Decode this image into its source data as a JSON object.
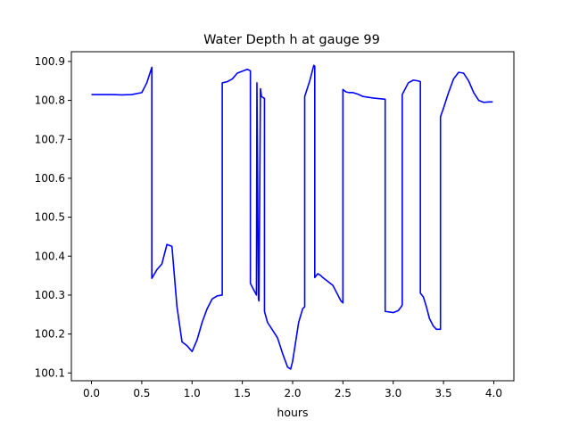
{
  "chart_data": {
    "type": "line",
    "title": "Water Depth h at gauge 99",
    "xlabel": "hours",
    "ylabel": "",
    "xlim": [
      -0.2,
      4.2
    ],
    "ylim": [
      100.08,
      100.925
    ],
    "xticks": [
      0.0,
      0.5,
      1.0,
      1.5,
      2.0,
      2.5,
      3.0,
      3.5,
      4.0
    ],
    "xtick_labels": [
      "0.0",
      "0.5",
      "1.0",
      "1.5",
      "2.0",
      "2.5",
      "3.0",
      "3.5",
      "4.0"
    ],
    "yticks": [
      100.1,
      100.2,
      100.3,
      100.4,
      100.5,
      100.6,
      100.7,
      100.8,
      100.9
    ],
    "ytick_labels": [
      "100.1",
      "100.2",
      "100.3",
      "100.4",
      "100.5",
      "100.6",
      "100.7",
      "100.8",
      "100.9"
    ],
    "grid": false,
    "legend": "none",
    "series_color": "#0000ff",
    "series": [
      {
        "x": [
          0.0,
          0.1,
          0.2,
          0.3,
          0.4,
          0.5,
          0.55,
          0.6,
          0.6,
          0.65,
          0.7,
          0.75,
          0.8,
          0.85,
          0.9,
          0.95,
          1.0,
          1.05,
          1.1,
          1.15,
          1.2,
          1.25,
          1.3,
          1.3,
          1.35,
          1.4,
          1.45,
          1.5,
          1.55,
          1.58,
          1.58,
          1.62,
          1.64,
          1.645,
          1.66,
          1.665,
          1.68,
          1.69,
          1.72,
          1.72,
          1.75,
          1.8,
          1.85,
          1.9,
          1.95,
          1.98,
          2.0,
          2.03,
          2.06,
          2.1,
          2.12,
          2.12,
          2.17,
          2.21,
          2.22,
          2.22,
          2.25,
          2.28,
          2.3,
          2.35,
          2.4,
          2.45,
          2.48,
          2.5,
          2.5,
          2.53,
          2.56,
          2.6,
          2.65,
          2.7,
          2.8,
          2.92,
          2.92,
          3.0,
          3.05,
          3.08,
          3.09,
          3.09,
          3.15,
          3.2,
          3.25,
          3.27,
          3.27,
          3.3,
          3.33,
          3.36,
          3.4,
          3.43,
          3.46,
          3.47,
          3.47,
          3.5,
          3.55,
          3.6,
          3.65,
          3.7,
          3.75,
          3.8,
          3.85,
          3.9,
          3.95,
          3.99
        ],
        "y": [
          100.815,
          100.815,
          100.815,
          100.814,
          100.815,
          100.82,
          100.845,
          100.885,
          100.343,
          100.365,
          100.38,
          100.43,
          100.425,
          100.27,
          100.18,
          100.17,
          100.155,
          100.185,
          100.23,
          100.265,
          100.29,
          100.298,
          100.3,
          100.845,
          100.848,
          100.855,
          100.87,
          100.875,
          100.88,
          100.876,
          100.33,
          100.31,
          100.3,
          100.845,
          100.29,
          100.285,
          100.83,
          100.81,
          100.805,
          100.258,
          100.23,
          100.21,
          100.19,
          100.15,
          100.115,
          100.11,
          100.13,
          100.18,
          100.23,
          100.265,
          100.27,
          100.81,
          100.85,
          100.89,
          100.888,
          100.345,
          100.355,
          100.35,
          100.345,
          100.335,
          100.325,
          100.3,
          100.285,
          100.28,
          100.828,
          100.822,
          100.82,
          100.82,
          100.816,
          100.81,
          100.806,
          100.803,
          100.258,
          100.255,
          100.26,
          100.27,
          100.275,
          100.815,
          100.845,
          100.852,
          100.85,
          100.848,
          100.305,
          100.295,
          100.27,
          100.24,
          100.22,
          100.212,
          100.212,
          100.212,
          100.758,
          100.78,
          100.82,
          100.855,
          100.872,
          100.87,
          100.85,
          100.82,
          100.8,
          100.795,
          100.796,
          100.796
        ]
      }
    ]
  }
}
